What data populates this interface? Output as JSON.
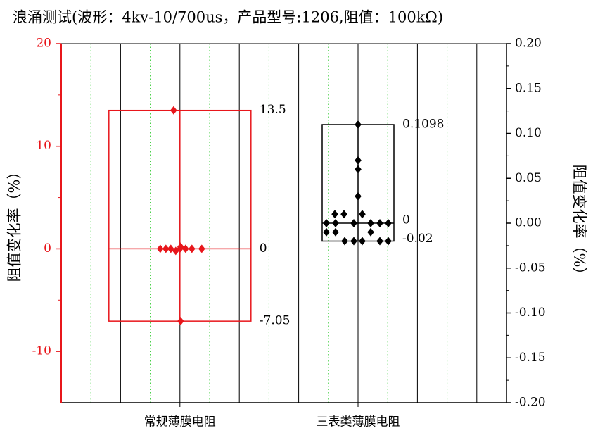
{
  "chart_data": {
    "type": "box",
    "title": "浪涌测试(波形：4kv-10/700us，产品型号:1206,阻值：100kΩ)",
    "ylabel": "阻值变化率（%）",
    "y2label": "阻值变化率（%）",
    "categories": [
      "常规薄膜电阻",
      "三表类薄膜电阻"
    ],
    "ylim": [
      -15,
      20
    ],
    "yticks": [
      -10,
      0,
      10,
      20
    ],
    "y2lim": [
      -0.2,
      0.2
    ],
    "y2ticks": [
      {
        "value": -0.2,
        "label": "-0.20"
      },
      {
        "value": -0.15,
        "label": "-0.15"
      },
      {
        "value": -0.1,
        "label": "-0.10"
      },
      {
        "value": -0.05,
        "label": "-0.05"
      },
      {
        "value": 0,
        "label": "0.00"
      },
      {
        "value": 0.05,
        "label": "0.05"
      },
      {
        "value": 0.1,
        "label": "0.10"
      },
      {
        "value": 0.15,
        "label": "0.15"
      },
      {
        "value": 0.2,
        "label": "0.20"
      }
    ],
    "left_axis_color": "#e8161b",
    "series": [
      {
        "color": "#e8161b",
        "box": {
          "max": 13.5,
          "median": 0,
          "min": -7.05
        },
        "values": [
          13.5,
          0,
          0,
          0,
          -0.2,
          0,
          0.2,
          0,
          0,
          0,
          -7.05
        ]
      },
      {
        "color": "#000000",
        "axis": "y2",
        "box": {
          "max": 0.1098,
          "median": 0,
          "min": -0.02
        },
        "values": [
          0.1098,
          0.07,
          0.06,
          0.03,
          0.01,
          0.01,
          0.01,
          0,
          0,
          0,
          0,
          0,
          0,
          -0.01,
          -0.01,
          -0.01,
          -0.02,
          -0.02,
          -0.02,
          -0.02,
          -0.02
        ]
      }
    ]
  }
}
